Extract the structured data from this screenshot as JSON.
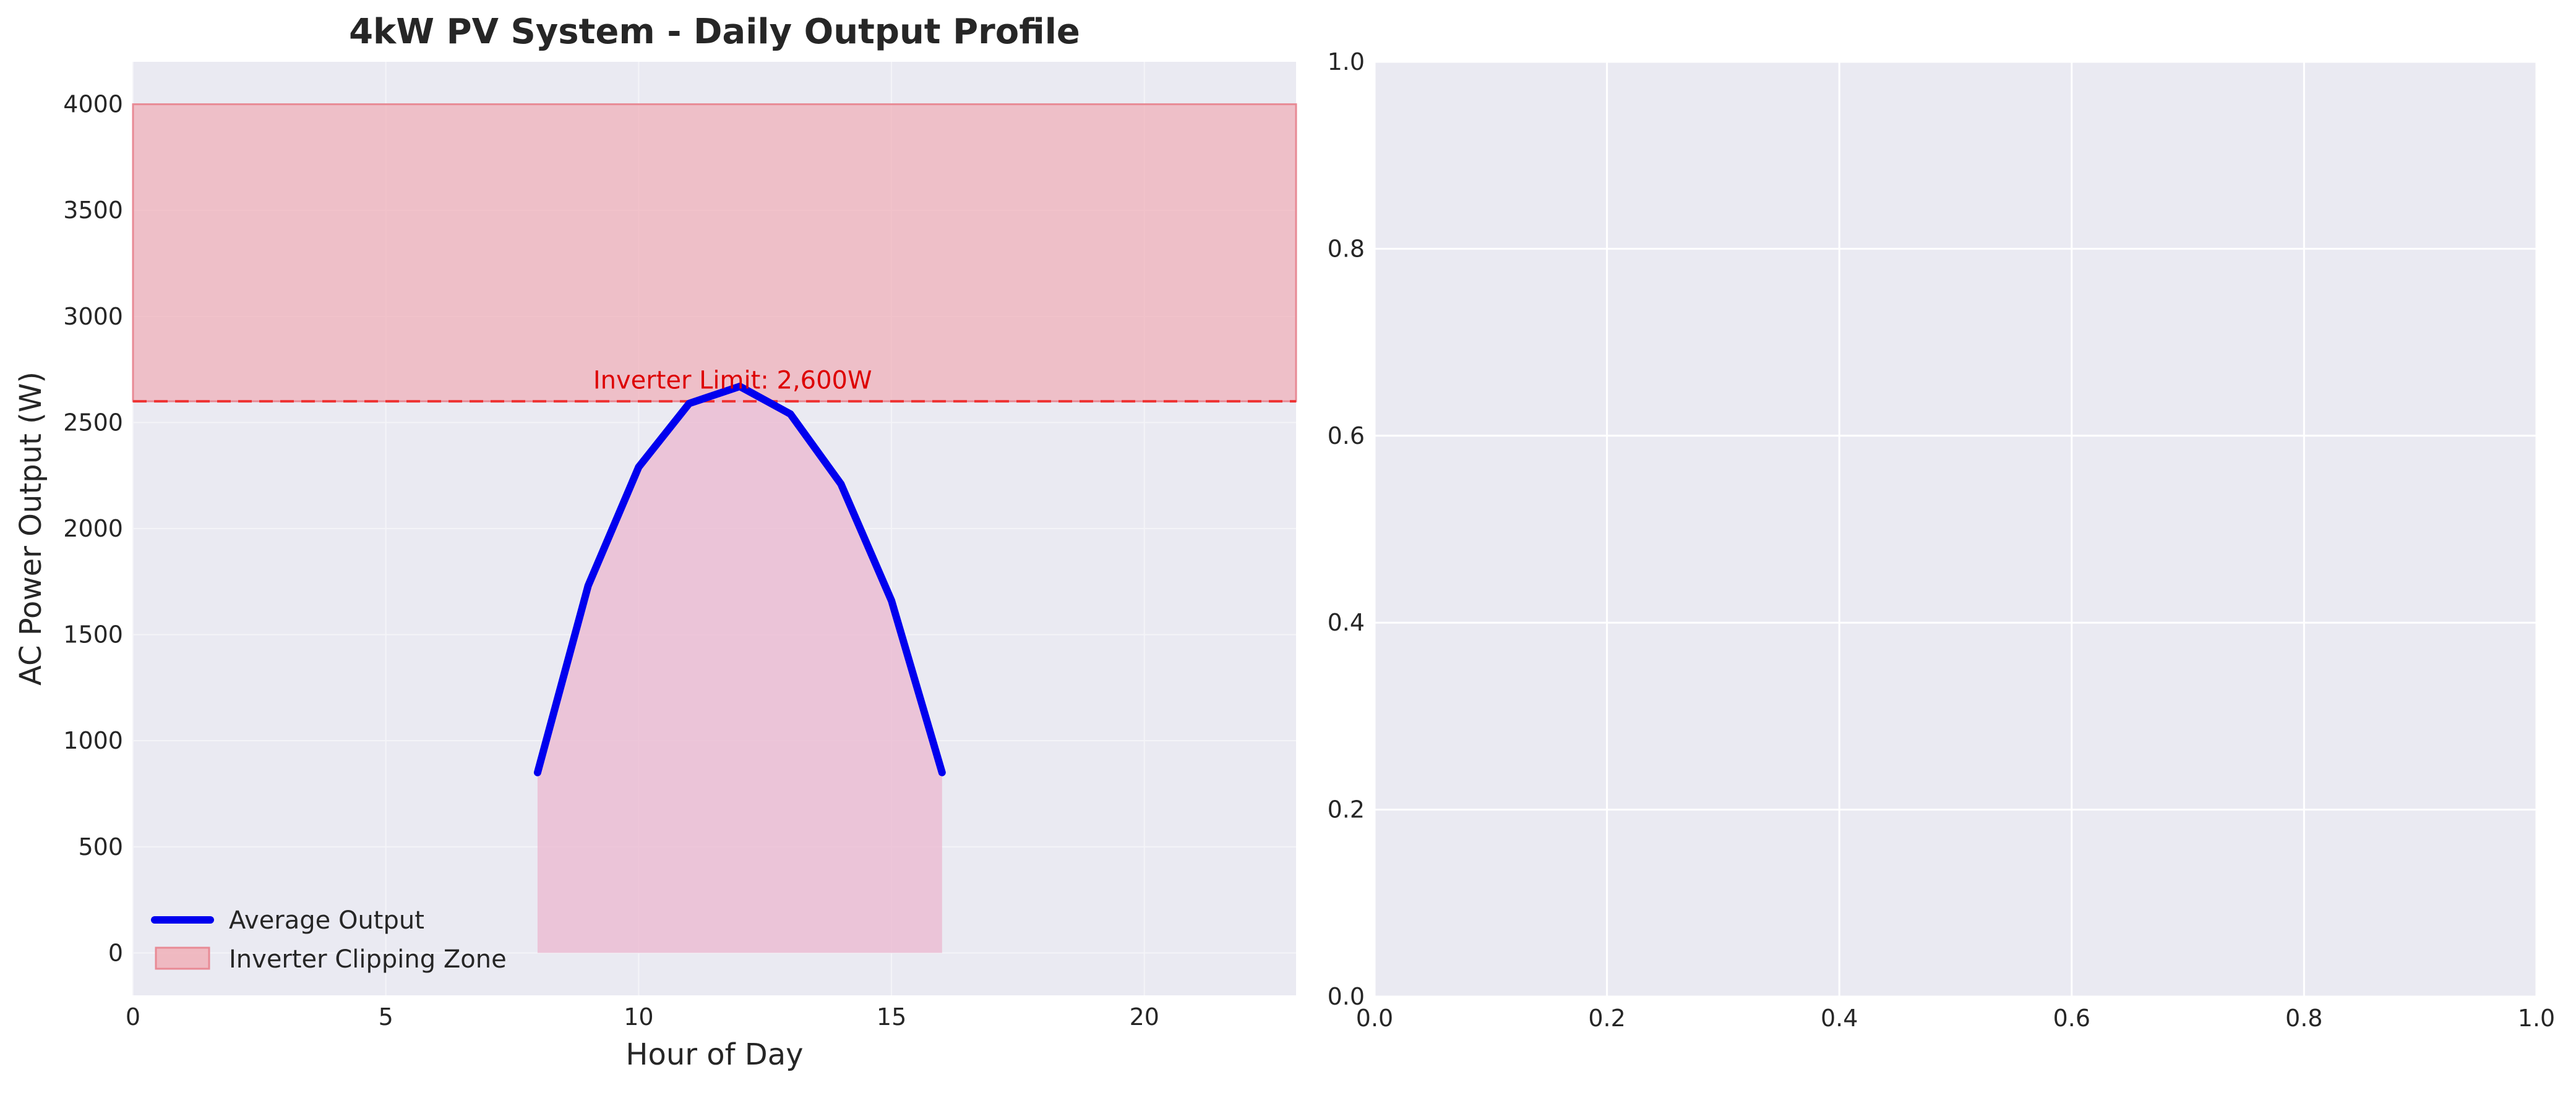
{
  "chart_data": [
    {
      "type": "line",
      "title": "4kW PV System - Daily Output Profile",
      "xlabel": "Hour of Day",
      "ylabel": "AC Power Output (W)",
      "xlim": [
        0,
        23
      ],
      "ylim": [
        -200,
        4200
      ],
      "xticks": [
        0,
        5,
        10,
        15,
        20
      ],
      "yticks": [
        0,
        500,
        1000,
        1500,
        2000,
        2500,
        3000,
        3500,
        4000
      ],
      "grid": true,
      "x": [
        8,
        9,
        10,
        11,
        12,
        13,
        14,
        15,
        16
      ],
      "series": [
        {
          "name": "Average Output",
          "values": [
            850,
            1730,
            2290,
            2590,
            2670,
            2540,
            2210,
            1660,
            850
          ],
          "color": "#0000ee",
          "fill_to_zero": true,
          "fill_color": "#ebbdd3"
        }
      ],
      "clipping_zone": {
        "name": "Inverter Clipping Zone",
        "y_from": 2600,
        "y_to": 4000,
        "color": "#f0a8b0"
      },
      "reference_line": {
        "y": 2600,
        "color": "#ee3333",
        "style": "dashed"
      },
      "annotations": [
        {
          "text": "Inverter Limit: 2,600W",
          "x": 9.1,
          "y": 2660,
          "color": "#dd0000"
        }
      ],
      "legend": {
        "placement": "lower-left",
        "entries": [
          "Average Output",
          "Inverter Clipping Zone"
        ]
      }
    },
    {
      "type": "line",
      "title": "",
      "xlabel": "",
      "ylabel": "",
      "xlim": [
        0,
        1
      ],
      "ylim": [
        0,
        1
      ],
      "xticks": [
        0.0,
        0.2,
        0.4,
        0.6,
        0.8,
        1.0
      ],
      "yticks": [
        0.0,
        0.2,
        0.4,
        0.6,
        0.8,
        1.0
      ],
      "tick_format": "0.0",
      "grid": true,
      "series": []
    }
  ]
}
